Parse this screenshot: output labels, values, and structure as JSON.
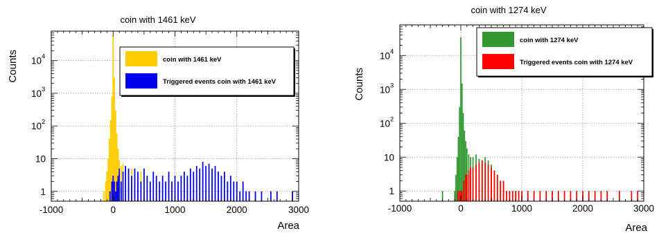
{
  "chart_data": [
    {
      "type": "bar",
      "title": "coin with 1461 keV",
      "xlabel": "Area",
      "ylabel": "Counts",
      "xlim": [
        -1000,
        3000
      ],
      "ylim": [
        0.5,
        80000
      ],
      "y_scale": "log",
      "grid": true,
      "legend_position": "top-right",
      "x_ticks": [
        "-1000",
        "0",
        "1000",
        "2000",
        "3000"
      ],
      "y_ticks": [
        {
          "base": "1",
          "exp": "",
          "value": 1
        },
        {
          "base": "10",
          "exp": "",
          "value": 10
        },
        {
          "base": "10",
          "exp": "2",
          "value": 100
        },
        {
          "base": "10",
          "exp": "3",
          "value": 1000
        },
        {
          "base": "10",
          "exp": "4",
          "value": 10000
        }
      ],
      "series": [
        {
          "name": "coin with 1461 keV",
          "color": "#ffcc00",
          "points": [
            [
              -150,
              1
            ],
            [
              -120,
              2
            ],
            [
              -100,
              4
            ],
            [
              -80,
              10
            ],
            [
              -60,
              40
            ],
            [
              -40,
              150
            ],
            [
              -20,
              800
            ],
            [
              0,
              55000
            ],
            [
              20,
              3000
            ],
            [
              40,
              300
            ],
            [
              60,
              60
            ],
            [
              80,
              20
            ],
            [
              100,
              9
            ],
            [
              130,
              6
            ],
            [
              160,
              7
            ],
            [
              200,
              5
            ],
            [
              250,
              4
            ],
            [
              300,
              5
            ],
            [
              350,
              3
            ],
            [
              400,
              2
            ],
            [
              450,
              4
            ],
            [
              500,
              3
            ],
            [
              600,
              2
            ],
            [
              700,
              2
            ],
            [
              800,
              1
            ],
            [
              900,
              3
            ],
            [
              1000,
              2
            ],
            [
              1100,
              1
            ],
            [
              1200,
              2
            ],
            [
              1300,
              1
            ],
            [
              1400,
              2
            ],
            [
              1500,
              1
            ],
            [
              1700,
              1
            ],
            [
              1900,
              1
            ],
            [
              2100,
              1
            ],
            [
              2300,
              1
            ]
          ]
        },
        {
          "name": "Triggered events coin with 1461 keV",
          "color": "#0000ee",
          "points": [
            [
              -50,
              1
            ],
            [
              -20,
              2
            ],
            [
              0,
              3
            ],
            [
              20,
              2
            ],
            [
              40,
              1
            ],
            [
              60,
              2
            ],
            [
              80,
              3
            ],
            [
              100,
              5
            ],
            [
              130,
              2
            ],
            [
              160,
              4
            ],
            [
              200,
              6
            ],
            [
              250,
              5
            ],
            [
              300,
              3
            ],
            [
              350,
              5
            ],
            [
              400,
              4
            ],
            [
              450,
              2
            ],
            [
              500,
              5
            ],
            [
              550,
              3
            ],
            [
              600,
              2
            ],
            [
              650,
              4
            ],
            [
              700,
              3
            ],
            [
              750,
              2
            ],
            [
              800,
              3
            ],
            [
              850,
              2
            ],
            [
              900,
              4
            ],
            [
              950,
              2
            ],
            [
              1000,
              3
            ],
            [
              1050,
              2
            ],
            [
              1100,
              3
            ],
            [
              1150,
              4
            ],
            [
              1200,
              3
            ],
            [
              1250,
              5
            ],
            [
              1300,
              4
            ],
            [
              1350,
              6
            ],
            [
              1400,
              5
            ],
            [
              1450,
              8
            ],
            [
              1500,
              6
            ],
            [
              1550,
              7
            ],
            [
              1600,
              5
            ],
            [
              1650,
              6
            ],
            [
              1700,
              4
            ],
            [
              1750,
              3
            ],
            [
              1800,
              4
            ],
            [
              1850,
              2
            ],
            [
              1900,
              3
            ],
            [
              1950,
              2
            ],
            [
              2000,
              2
            ],
            [
              2050,
              1
            ],
            [
              2100,
              2
            ],
            [
              2150,
              1
            ],
            [
              2200,
              1
            ],
            [
              2300,
              1
            ],
            [
              2400,
              1
            ],
            [
              2550,
              1
            ],
            [
              2650,
              1
            ],
            [
              2900,
              1
            ]
          ]
        }
      ]
    },
    {
      "type": "bar",
      "title": "coin with 1274 keV",
      "xlabel": "Area",
      "ylabel": "Counts",
      "xlim": [
        -1000,
        3000
      ],
      "ylim": [
        0.5,
        80000
      ],
      "y_scale": "log",
      "grid": true,
      "legend_position": "top-right",
      "x_ticks": [
        "-1000",
        "0",
        "1000",
        "2000",
        "3000"
      ],
      "y_ticks": [
        {
          "base": "1",
          "exp": "",
          "value": 1
        },
        {
          "base": "10",
          "exp": "",
          "value": 10
        },
        {
          "base": "10",
          "exp": "2",
          "value": 100
        },
        {
          "base": "10",
          "exp": "3",
          "value": 1000
        },
        {
          "base": "10",
          "exp": "4",
          "value": 10000
        }
      ],
      "series": [
        {
          "name": "coin with 1274 keV",
          "color": "#339933",
          "points": [
            [
              -300,
              1
            ],
            [
              -100,
              1
            ],
            [
              -80,
              3
            ],
            [
              -60,
              10
            ],
            [
              -40,
              40
            ],
            [
              -20,
              300
            ],
            [
              0,
              35000
            ],
            [
              20,
              1500
            ],
            [
              40,
              200
            ],
            [
              60,
              60
            ],
            [
              80,
              30
            ],
            [
              100,
              18
            ],
            [
              130,
              12
            ],
            [
              160,
              10
            ],
            [
              200,
              10
            ],
            [
              250,
              12
            ],
            [
              300,
              9
            ],
            [
              350,
              8
            ],
            [
              400,
              10
            ],
            [
              450,
              8
            ],
            [
              500,
              6
            ],
            [
              550,
              4
            ],
            [
              600,
              3
            ],
            [
              650,
              2
            ],
            [
              700,
              2
            ],
            [
              800,
              1
            ],
            [
              900,
              1
            ]
          ]
        },
        {
          "name": "Triggered events coin with 1274 keV",
          "color": "#ff0000",
          "points": [
            [
              -50,
              1
            ],
            [
              -20,
              1
            ],
            [
              0,
              1
            ],
            [
              20,
              1
            ],
            [
              50,
              2
            ],
            [
              80,
              3
            ],
            [
              100,
              3
            ],
            [
              130,
              4
            ],
            [
              160,
              5
            ],
            [
              200,
              5
            ],
            [
              250,
              6
            ],
            [
              300,
              7
            ],
            [
              350,
              8
            ],
            [
              400,
              7
            ],
            [
              450,
              6
            ],
            [
              500,
              5
            ],
            [
              550,
              4
            ],
            [
              600,
              3
            ],
            [
              650,
              2
            ],
            [
              700,
              2
            ],
            [
              750,
              1
            ],
            [
              800,
              1
            ],
            [
              850,
              1
            ],
            [
              900,
              1
            ],
            [
              950,
              1
            ],
            [
              1000,
              1
            ],
            [
              1100,
              1
            ],
            [
              1200,
              1
            ],
            [
              1300,
              1
            ],
            [
              1400,
              1
            ],
            [
              1500,
              1
            ],
            [
              1600,
              1
            ],
            [
              1700,
              1
            ],
            [
              1800,
              1
            ],
            [
              1900,
              1
            ],
            [
              2000,
              1
            ],
            [
              2100,
              1
            ],
            [
              2200,
              1
            ],
            [
              2300,
              1
            ],
            [
              2400,
              1
            ],
            [
              2600,
              1
            ],
            [
              2800,
              1
            ],
            [
              2900,
              1
            ]
          ]
        }
      ]
    }
  ]
}
